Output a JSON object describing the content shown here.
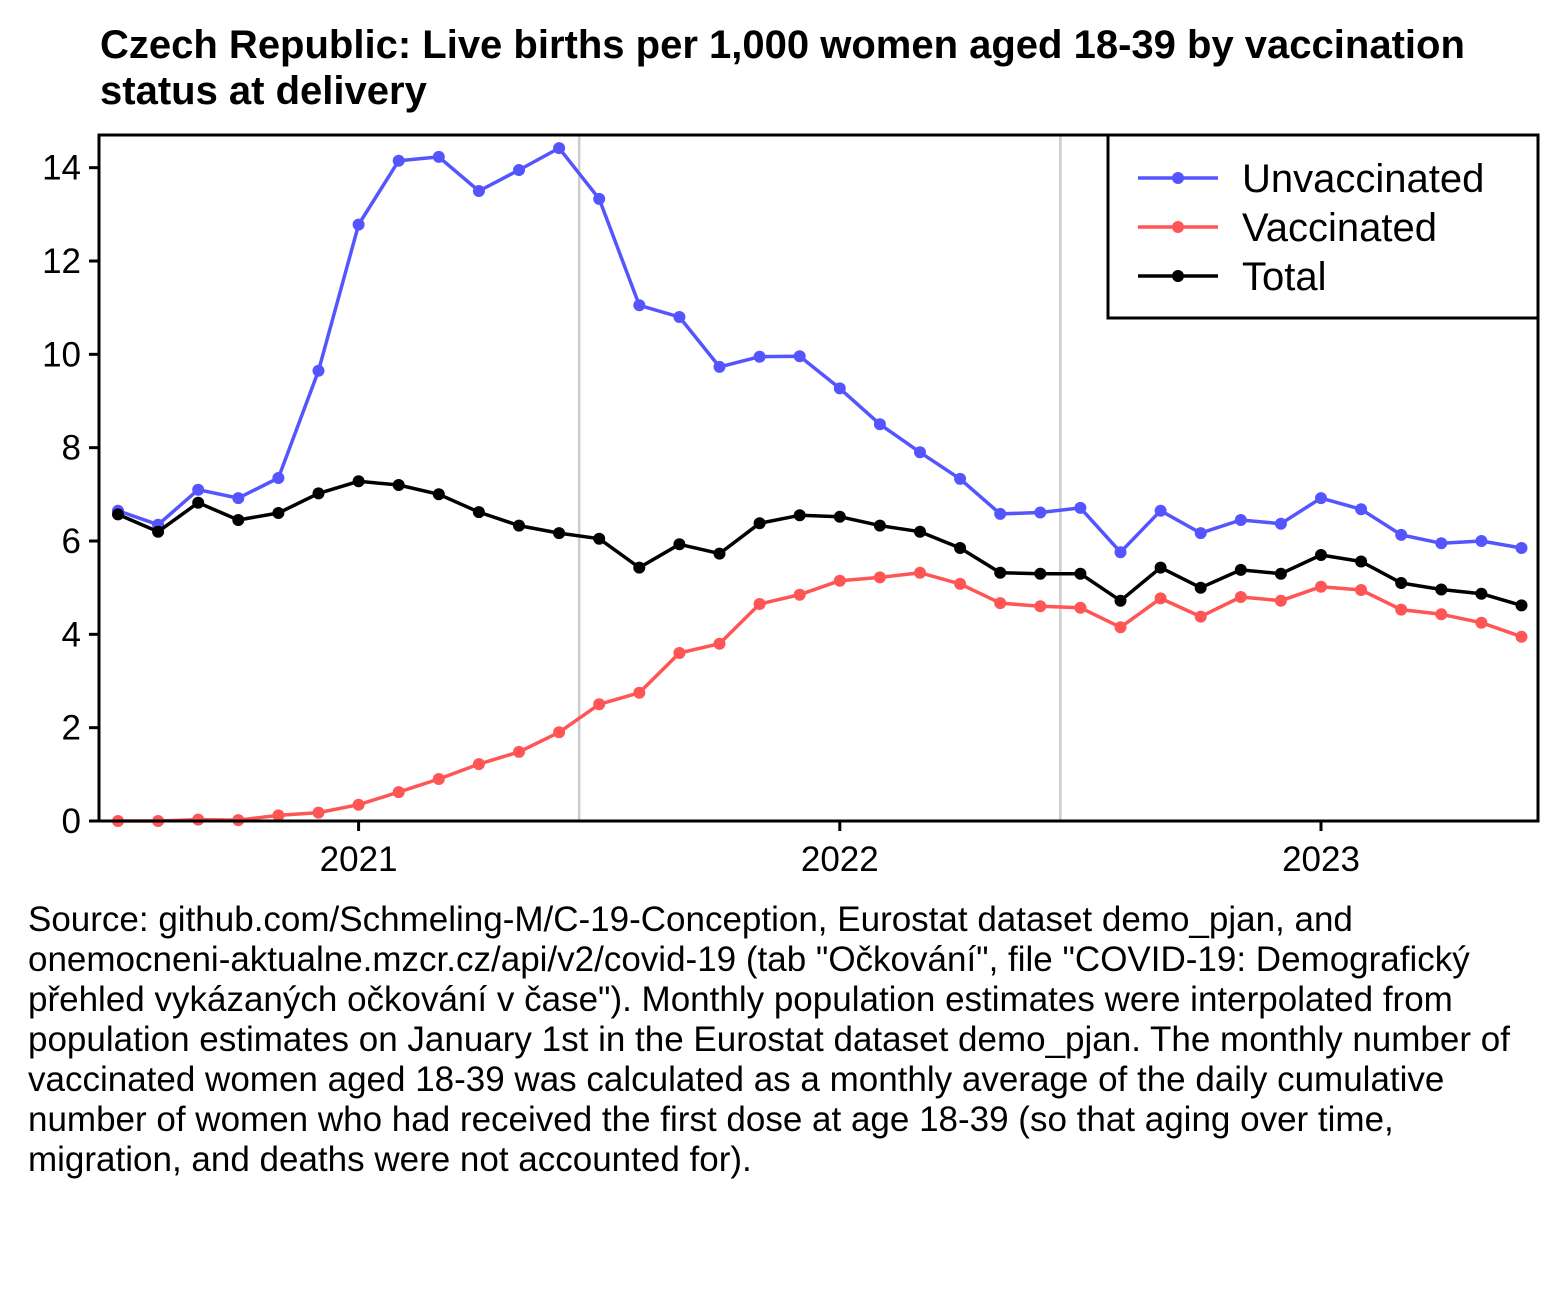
{
  "chart_data": {
    "type": "line",
    "title": "Czech Republic: Live births per 1,000 women aged 18-39 by vaccination status at delivery",
    "xlabel": "",
    "ylabel": "",
    "ylim": [
      0,
      14.7
    ],
    "yticks": [
      0,
      2,
      4,
      6,
      8,
      10,
      12,
      14
    ],
    "xticks": [
      "2021",
      "2022",
      "2023"
    ],
    "x": [
      "2020-07",
      "2020-08",
      "2020-09",
      "2020-10",
      "2020-11",
      "2020-12",
      "2021-01",
      "2021-02",
      "2021-03",
      "2021-04",
      "2021-05",
      "2021-06",
      "2021-07",
      "2021-08",
      "2021-09",
      "2021-10",
      "2021-11",
      "2021-12",
      "2022-01",
      "2022-02",
      "2022-03",
      "2022-04",
      "2022-05",
      "2022-06",
      "2022-07",
      "2022-08",
      "2022-09",
      "2022-10",
      "2022-11",
      "2022-12",
      "2023-01",
      "2023-02",
      "2023-03",
      "2023-04",
      "2023-05",
      "2023-06",
      "2023-07"
    ],
    "year_dividers": [
      "2021-07",
      "2022-07"
    ],
    "grid": false,
    "legend_position": "top-right",
    "series": [
      {
        "name": "Unvaccinated",
        "color": "#5555ff",
        "values": [
          6.65,
          6.35,
          7.1,
          6.92,
          7.35,
          9.65,
          12.78,
          14.15,
          14.23,
          13.5,
          13.95,
          14.42,
          13.33,
          11.05,
          10.8,
          9.73,
          9.95,
          9.96,
          9.27,
          8.5,
          7.9,
          7.33,
          6.58,
          6.61,
          6.71,
          5.76,
          6.65,
          6.17,
          6.45,
          6.37,
          6.92,
          6.68,
          6.13,
          5.95,
          6.0,
          5.85,
          null
        ]
      },
      {
        "name": "Vaccinated",
        "color": "#ff5555",
        "values": [
          0.0,
          0.0,
          0.03,
          0.02,
          0.12,
          0.18,
          0.35,
          0.62,
          0.9,
          1.22,
          1.48,
          1.9,
          2.5,
          2.75,
          3.6,
          3.8,
          4.65,
          4.85,
          5.15,
          5.22,
          5.32,
          5.08,
          4.67,
          4.6,
          4.57,
          4.15,
          4.77,
          4.38,
          4.8,
          4.72,
          5.02,
          4.95,
          4.53,
          4.43,
          4.25,
          3.95,
          null
        ]
      },
      {
        "name": "Total",
        "color": "#000000",
        "values": [
          6.57,
          6.2,
          6.82,
          6.45,
          6.6,
          7.02,
          7.28,
          7.2,
          7.0,
          6.62,
          6.33,
          6.17,
          6.05,
          5.43,
          5.93,
          5.73,
          6.38,
          6.55,
          6.52,
          6.33,
          6.2,
          5.85,
          5.32,
          5.3,
          5.3,
          4.72,
          5.43,
          5.0,
          5.38,
          5.3,
          5.7,
          5.56,
          5.1,
          4.96,
          4.87,
          4.62,
          null
        ]
      }
    ]
  },
  "source_note": "Source: github.com/Schmeling-M/C-19-Conception, Eurostat dataset demo_pjan, and onemocneni-aktualne.mzcr.cz/api/v2/covid-19 (tab \"Očkování\", file \"COVID-19: Demografický přehled vykázaných očkování v čase\"). Monthly population estimates were interpolated from population estimates on January 1st in the Eurostat dataset demo_pjan. The monthly number of vaccinated women aged 18-39 was calculated as a monthly average of the daily cumulative number of women who had received the first dose at age 18-39 (so that aging over time, migration, and deaths were not accounted for)."
}
